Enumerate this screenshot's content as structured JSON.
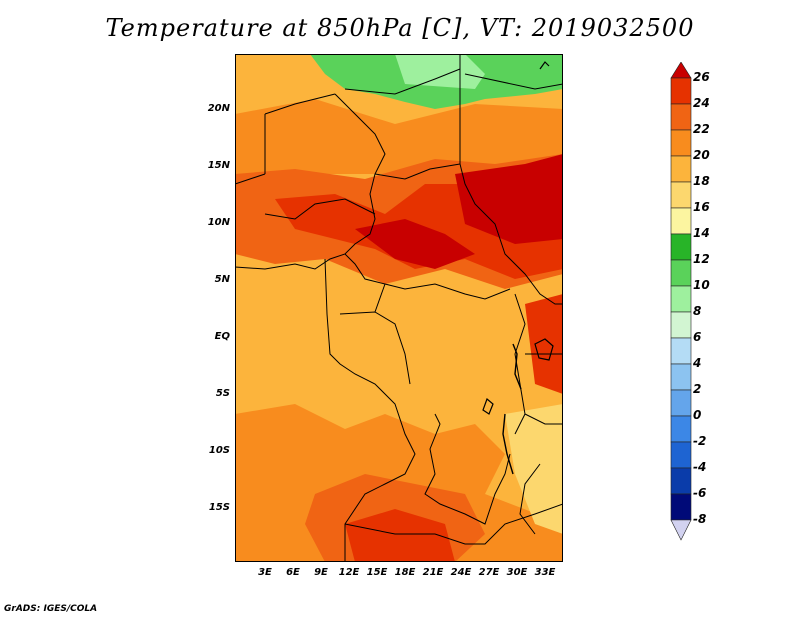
{
  "title": "Temperature at 850hPa [C], VT: 2019032500",
  "credit": "GrADS: IGES/COLA",
  "lat_ticks": [
    "20N",
    "15N",
    "10N",
    "5N",
    "EQ",
    "5S",
    "10S",
    "15S"
  ],
  "lon_ticks": [
    "3E",
    "6E",
    "9E",
    "12E",
    "15E",
    "18E",
    "21E",
    "24E",
    "27E",
    "30E",
    "33E"
  ],
  "colorbar": {
    "labels": [
      "26",
      "24",
      "22",
      "20",
      "18",
      "16",
      "14",
      "12",
      "10",
      "8",
      "6",
      "4",
      "2",
      "0",
      "-2",
      "-4",
      "-6",
      "-8"
    ],
    "colors": [
      "#c80000",
      "#e63200",
      "#f06414",
      "#f88c1e",
      "#fcb43c",
      "#fcd76e",
      "#fcf5a0",
      "#28b428",
      "#5ad25a",
      "#9ef09e",
      "#d2f5d2",
      "#b4dcf5",
      "#8cc3f0",
      "#64a5eb",
      "#3c87e6",
      "#1e64d2",
      "#0a3caa",
      "#000a78",
      "#d2d2f0"
    ]
  }
}
